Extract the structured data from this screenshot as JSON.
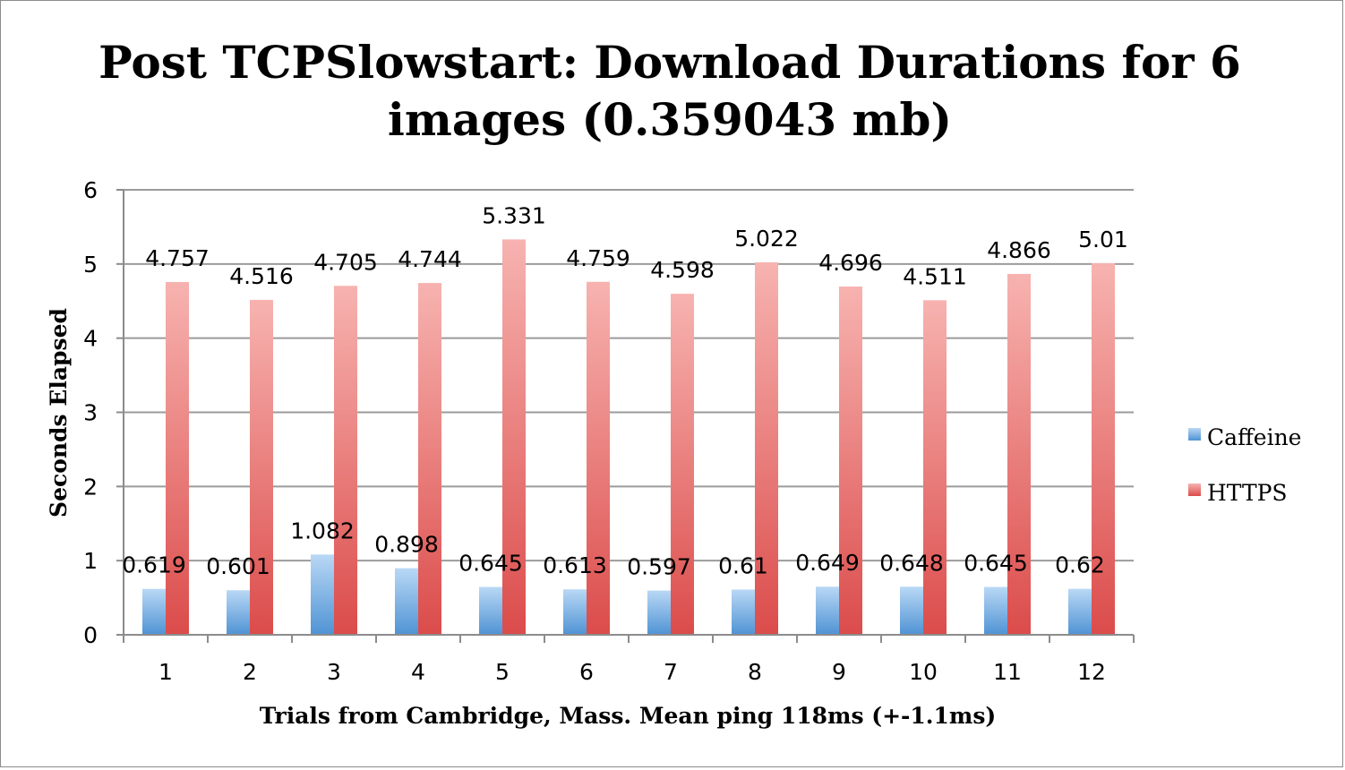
{
  "chart_data": {
    "type": "bar",
    "title_lines": [
      "Post TCPSlowstart: Download Durations for 6",
      "images (0.359043 mb)"
    ],
    "xlabel": "Trials from Cambridge, Mass. Mean ping 118ms (+-1.1ms)",
    "ylabel": "Seconds Elapsed",
    "ylim": [
      0,
      6
    ],
    "yticks": [
      "0",
      "1",
      "2",
      "3",
      "4",
      "5",
      "6"
    ],
    "grid": true,
    "legend_position": "right",
    "categories": [
      "1",
      "2",
      "3",
      "4",
      "5",
      "6",
      "7",
      "8",
      "9",
      "10",
      "11",
      "12"
    ],
    "series": [
      {
        "name": "Caffeine",
        "color": "#5b9bd5",
        "values": [
          0.619,
          0.601,
          1.082,
          0.898,
          0.645,
          0.613,
          0.597,
          0.61,
          0.649,
          0.648,
          0.645,
          0.62
        ],
        "labels": [
          "0.619",
          "0.601",
          "1.082",
          "0.898",
          "0.645",
          "0.613",
          "0.597",
          "0.61",
          "0.649",
          "0.648",
          "0.645",
          "0.62"
        ]
      },
      {
        "name": "HTTPS",
        "color": "#e05a5a",
        "values": [
          4.757,
          4.516,
          4.705,
          4.744,
          5.331,
          4.759,
          4.598,
          5.022,
          4.696,
          4.511,
          4.866,
          5.01
        ],
        "labels": [
          "4.757",
          "4.516",
          "4.705",
          "4.744",
          "5.331",
          "4.759",
          "4.598",
          "5.022",
          "4.696",
          "4.511",
          "4.866",
          "5.01"
        ]
      }
    ]
  }
}
